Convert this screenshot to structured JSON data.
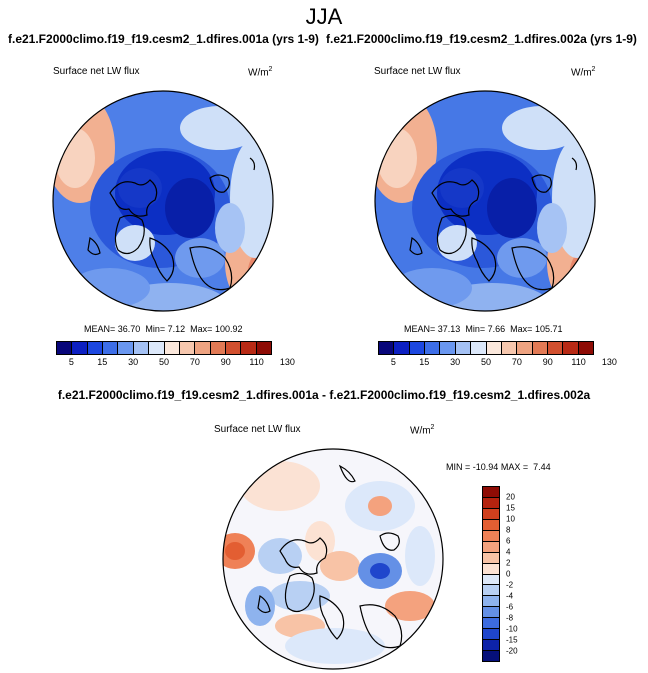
{
  "season": "JJA",
  "panels": [
    {
      "case_title": "f.e21.F2000climo.f19_f19.cesm2_1.dfires.001a (yrs 1-9)",
      "field": "Surface net LW flux",
      "units": "W/m",
      "units_exp": "2",
      "mean_label": "MEAN=",
      "mean": "36.70",
      "min_label": "Min=",
      "min": "7.12",
      "max_label": "Max=",
      "max": "100.92"
    },
    {
      "case_title": "f.e21.F2000climo.f19_f19.cesm2_1.dfires.002a (yrs 1-9)",
      "field": "Surface net LW flux",
      "units": "W/m",
      "units_exp": "2",
      "mean_label": "MEAN=",
      "mean": "37.13",
      "min_label": "Min=",
      "min": "7.66",
      "max_label": "Max=",
      "max": "105.71"
    }
  ],
  "abs_colorbar": {
    "ticks": [
      "5",
      "15",
      "30",
      "50",
      "70",
      "90",
      "110",
      "130"
    ],
    "colors": [
      "#08067a",
      "#0d20c2",
      "#1c47e0",
      "#3d6ee8",
      "#6a97f0",
      "#a4c1f4",
      "#dce8fa",
      "#fbe8dc",
      "#f6c7ae",
      "#eea381",
      "#e27a55",
      "#d2502f",
      "#b82a15",
      "#8e0c05"
    ]
  },
  "diff": {
    "title": "f.e21.F2000climo.f19_f19.cesm2_1.dfires.001a - f.e21.F2000climo.f19_f19.cesm2_1.dfires.002a",
    "field": "Surface net LW flux",
    "units": "W/m",
    "units_exp": "2",
    "min_label": "MIN =",
    "min": "-10.94",
    "max_label": "MAX =",
    "max": "7.44",
    "colorbar": {
      "ticks": [
        "20",
        "15",
        "10",
        "8",
        "6",
        "4",
        "2",
        "0",
        "-2",
        "-4",
        "-6",
        "-8",
        "-10",
        "-15",
        "-20"
      ],
      "colors": [
        "#8e0c05",
        "#b4230f",
        "#d0401e",
        "#e35e32",
        "#ef8157",
        "#f4a27e",
        "#f8c3a6",
        "#fce2d3",
        "#dde8f8",
        "#b8d0f3",
        "#8eb3ee",
        "#6490e6",
        "#3d6ce0",
        "#1f46cc",
        "#0d23a8",
        "#06107a"
      ]
    }
  },
  "colors": {
    "ocean_blue": "#3f6fe4",
    "deep_blue": "#0c2fc4",
    "pale_blue": "#cfe0f8",
    "land_warm": "#f3b99a"
  }
}
